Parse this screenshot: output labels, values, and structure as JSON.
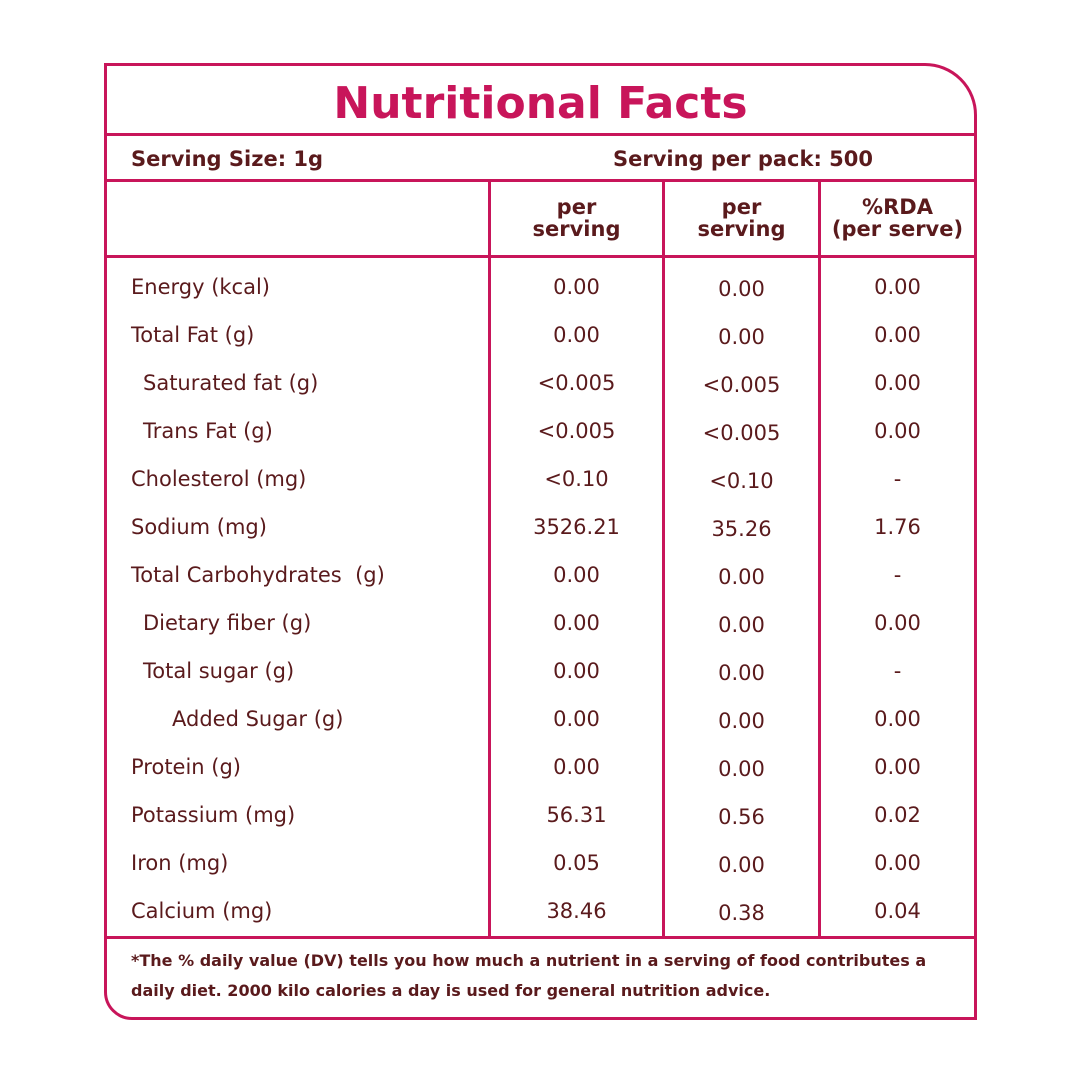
{
  "title": "Nutritional Facts",
  "serving_size": "Serving Size: 1g",
  "serving_per_pack": "Serving per pack: 500",
  "columns": [
    {
      "line1": "per",
      "line2": "serving"
    },
    {
      "line1": "per",
      "line2": "serving"
    },
    {
      "line1": "%RDA",
      "line2": "(per serve)"
    }
  ],
  "rows": [
    {
      "name": "Energy (kcal)",
      "v1": "0.00",
      "v2": "0.00",
      "v3": "0.00"
    },
    {
      "name": "Total Fat (g)",
      "v1": "0.00",
      "v2": "0.00",
      "v3": "0.00"
    },
    {
      "name": "Saturated fat (g)",
      "v1": "<0.005",
      "v2": "<0.005",
      "v3": "0.00"
    },
    {
      "name": "Trans Fat (g)",
      "v1": "<0.005",
      "v2": "<0.005",
      "v3": "0.00"
    },
    {
      "name": "Cholesterol (mg)",
      "v1": "<0.10",
      "v2": "<0.10",
      "v3": "-"
    },
    {
      "name": "Sodium (mg)",
      "v1": "3526.21",
      "v2": "35.26",
      "v3": "1.76"
    },
    {
      "name": "Total Carbohydrates  (g)",
      "v1": "0.00",
      "v2": "0.00",
      "v3": "-"
    },
    {
      "name": "Dietary fiber (g)",
      "v1": "0.00",
      "v2": "0.00",
      "v3": "0.00"
    },
    {
      "name": "Total sugar (g)",
      "v1": "0.00",
      "v2": "0.00",
      "v3": "-"
    },
    {
      "name": "Added Sugar (g)",
      "v1": "0.00",
      "v2": "0.00",
      "v3": "0.00"
    },
    {
      "name": "Protein (g)",
      "v1": "0.00",
      "v2": "0.00",
      "v3": "0.00"
    },
    {
      "name": "Potassium (mg)",
      "v1": "56.31",
      "v2": "0.56",
      "v3": "0.02"
    },
    {
      "name": "Iron (mg)",
      "v1": "0.05",
      "v2": "0.00",
      "v3": "0.00"
    },
    {
      "name": "Calcium (mg)",
      "v1": "38.46",
      "v2": "0.38",
      "v3": "0.04"
    }
  ],
  "footnote_line1": "*The % daily value (DV) tells you how much a nutrient in a serving of food contributes a",
  "footnote_line2": "daily diet. 2000 kilo calories a day is used for general nutrition advice.",
  "colors": {
    "accent": "#c8155a",
    "text": "#5a1a1c",
    "background": "#ffffff"
  }
}
